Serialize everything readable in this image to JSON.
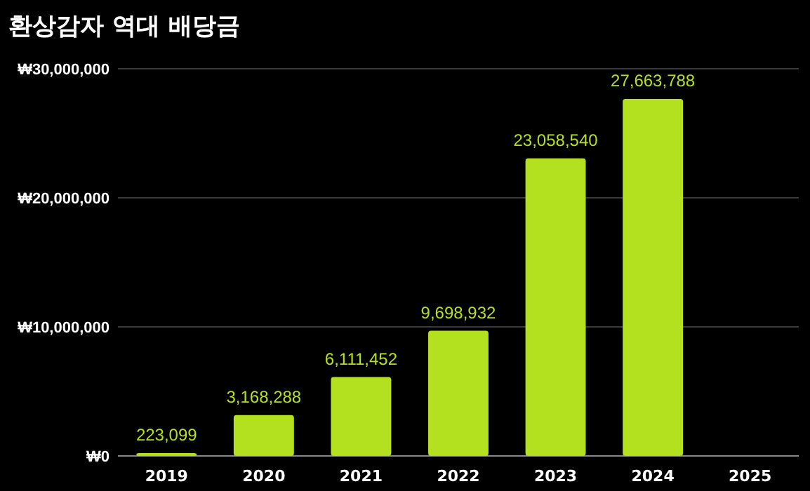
{
  "chart_data": {
    "type": "bar",
    "title": "환상감자 역대 배당금",
    "categories": [
      "2019",
      "2020",
      "2021",
      "2022",
      "2023",
      "2024",
      "2025"
    ],
    "values": [
      223099,
      3168288,
      6111452,
      9698932,
      23058540,
      27663788,
      null
    ],
    "value_labels": [
      "223,099",
      "3,168,288",
      "6,111,452",
      "9,698,932",
      "23,058,540",
      "27,663,788",
      null
    ],
    "color": "#b4e11f",
    "ylim": [
      0,
      30000000
    ],
    "yticks": [
      {
        "value": 0,
        "label": "₩0"
      },
      {
        "value": 10000000,
        "label": "₩10,000,000"
      },
      {
        "value": 20000000,
        "label": "₩20,000,000"
      },
      {
        "value": 30000000,
        "label": "₩30,000,000"
      }
    ],
    "grid": "y"
  }
}
